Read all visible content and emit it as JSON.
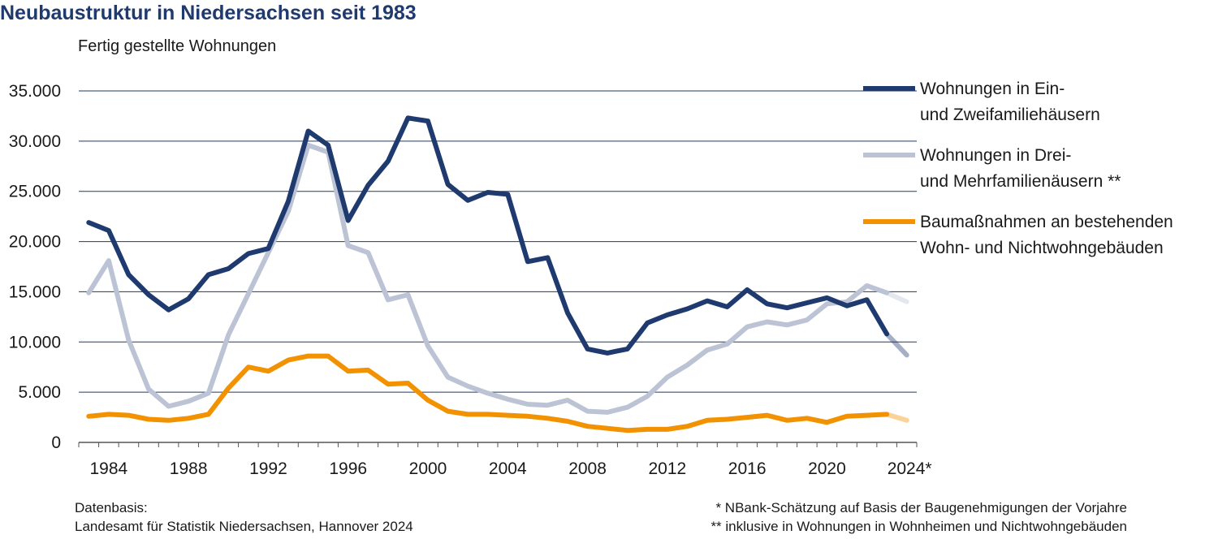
{
  "title": "Neubaustruktur in Niedersachsen seit 1983",
  "subtitle": "Fertig gestellte Wohnungen",
  "footer": {
    "source_label": "Datenbasis:",
    "source_text": "Landesamt für Statistik Niedersachsen, Hannover 2024",
    "note1": "* NBank-Schätzung auf Basis der Baugenehmigungen der Vorjahre",
    "note2": "** inklusive in Wohnungen in Wohnheimen und Nichtwohngebäuden"
  },
  "chart_data": {
    "type": "line",
    "title": "Neubaustruktur in Niedersachsen seit 1983",
    "ylabel": "Fertig gestellte Wohnungen",
    "ylim": [
      0,
      35000
    ],
    "y_ticks": [
      0,
      5000,
      10000,
      15000,
      20000,
      25000,
      30000,
      35000
    ],
    "y_tick_labels": [
      "0",
      "5.000",
      "10.000",
      "15.000",
      "20.000",
      "25.000",
      "30.000",
      "35.000"
    ],
    "x_tick_values": [
      1984,
      1988,
      1992,
      1996,
      2000,
      2004,
      2008,
      2012,
      2016,
      2020,
      2024
    ],
    "x_tick_labels": [
      "1984",
      "1988",
      "1992",
      "1996",
      "2000",
      "2004",
      "2008",
      "2012",
      "2016",
      "2020",
      "2024*"
    ],
    "grid": "horizontal",
    "legend_position": "right",
    "estimate_year": 2024,
    "x": [
      1983,
      1984,
      1985,
      1986,
      1987,
      1988,
      1989,
      1990,
      1991,
      1992,
      1993,
      1994,
      1995,
      1996,
      1997,
      1998,
      1999,
      2000,
      2001,
      2002,
      2003,
      2004,
      2005,
      2006,
      2007,
      2008,
      2009,
      2010,
      2011,
      2012,
      2013,
      2014,
      2015,
      2016,
      2017,
      2018,
      2019,
      2020,
      2021,
      2022,
      2023,
      2024
    ],
    "series": [
      {
        "name": "Wohnungen in Ein- und Zweifamiliehäusern",
        "legend_lines": [
          "Wohnungen in Ein-",
          "und Zweifamiliehäusern"
        ],
        "color": "#1f3a6e",
        "values": [
          21900,
          21100,
          16700,
          14700,
          13200,
          14300,
          16700,
          17300,
          18800,
          19300,
          24000,
          31000,
          29600,
          22100,
          25600,
          28000,
          32300,
          32000,
          25700,
          24100,
          24900,
          24700,
          18000,
          18400,
          12900,
          9300,
          8900,
          9300,
          11900,
          12700,
          13300,
          14100,
          13500,
          15200,
          13800,
          13400,
          13900,
          14400,
          13600,
          14200,
          10800,
          8700
        ]
      },
      {
        "name": "Wohnungen in Drei- und Mehrfamilienäusern **",
        "legend_lines": [
          "Wohnungen in Drei-",
          "und Mehrfamilienäusern **"
        ],
        "color": "#bcc3d4",
        "values": [
          14900,
          18100,
          10200,
          5300,
          3600,
          4100,
          4900,
          10700,
          14800,
          18900,
          23000,
          29600,
          28900,
          19600,
          18900,
          14200,
          14700,
          9600,
          6500,
          5600,
          4900,
          4300,
          3800,
          3700,
          4200,
          3100,
          3000,
          3500,
          4600,
          6500,
          7700,
          9200,
          9800,
          11500,
          12000,
          11700,
          12200,
          13800,
          14000,
          15600,
          14900,
          14000
        ]
      },
      {
        "name": "Baumaßnahmen an bestehenden Wohn- und Nichtwohngebäuden",
        "legend_lines": [
          "Baumaßnahmen an bestehenden",
          "Wohn- und Nichtwohngebäuden"
        ],
        "color": "#f39200",
        "values": [
          2600,
          2800,
          2700,
          2300,
          2200,
          2400,
          2800,
          5400,
          7500,
          7100,
          8200,
          8600,
          8600,
          7100,
          7200,
          5800,
          5900,
          4200,
          3100,
          2800,
          2800,
          2700,
          2600,
          2400,
          2100,
          1600,
          1400,
          1200,
          1300,
          1300,
          1600,
          2200,
          2300,
          2500,
          2700,
          2200,
          2400,
          2000,
          2600,
          2700,
          2800,
          2200
        ]
      }
    ]
  }
}
